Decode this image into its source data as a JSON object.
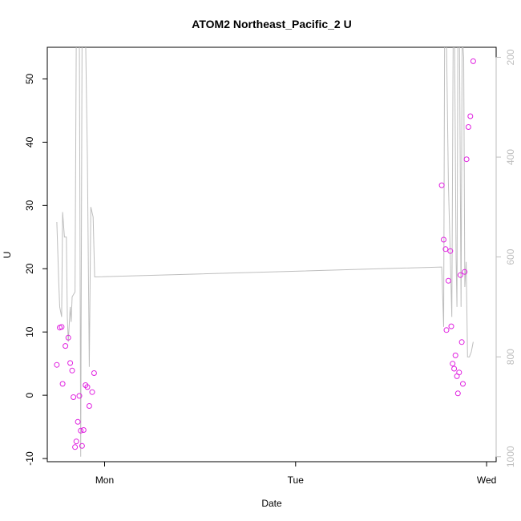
{
  "chart_data": {
    "type": "scatter",
    "title": "ATOM2 Northeast_Pacific_2 U",
    "xlabel": "Date",
    "ylabel": "U",
    "x_tick_labels": [
      "Mon",
      "Tue",
      "Wed"
    ],
    "x_ticks": [
      0,
      1,
      2
    ],
    "xlim": [
      -0.3,
      2.05
    ],
    "ylim": [
      -10.5,
      55
    ],
    "y_ticks": [
      -10,
      0,
      10,
      20,
      30,
      40,
      50
    ],
    "y2_ticks": [
      200,
      400,
      600,
      800,
      1000
    ],
    "y2_lim": [
      1010,
      180
    ],
    "colors": {
      "points": "#e020e0",
      "line": "#bebebe",
      "axis": "#000000",
      "right_axis": "#bebebe"
    },
    "series": [
      {
        "kind": "points",
        "points": [
          [
            -0.25,
            4.8
          ],
          [
            -0.235,
            10.7
          ],
          [
            -0.225,
            10.8
          ],
          [
            -0.22,
            1.8
          ],
          [
            -0.205,
            7.8
          ],
          [
            -0.19,
            9.1
          ],
          [
            -0.18,
            5.1
          ],
          [
            -0.17,
            3.9
          ],
          [
            -0.163,
            -0.3
          ],
          [
            -0.155,
            -8.2
          ],
          [
            -0.148,
            -7.3
          ],
          [
            -0.14,
            -4.2
          ],
          [
            -0.132,
            -0.1
          ],
          [
            -0.125,
            -5.6
          ],
          [
            -0.118,
            -8.0
          ],
          [
            -0.11,
            -5.5
          ],
          [
            -0.1,
            1.6
          ],
          [
            -0.09,
            1.3
          ],
          [
            -0.08,
            -1.7
          ],
          [
            -0.065,
            0.5
          ],
          [
            -0.055,
            3.5
          ],
          [
            1.765,
            33.2
          ],
          [
            1.775,
            24.6
          ],
          [
            1.785,
            23.1
          ],
          [
            1.79,
            10.3
          ],
          [
            1.8,
            18.1
          ],
          [
            1.81,
            22.8
          ],
          [
            1.815,
            10.9
          ],
          [
            1.822,
            5.0
          ],
          [
            1.83,
            4.2
          ],
          [
            1.837,
            6.3
          ],
          [
            1.845,
            3.0
          ],
          [
            1.85,
            0.3
          ],
          [
            1.856,
            3.6
          ],
          [
            1.863,
            19.0
          ],
          [
            1.87,
            8.4
          ],
          [
            1.876,
            1.8
          ],
          [
            1.885,
            19.5
          ],
          [
            1.895,
            37.3
          ],
          [
            1.905,
            42.4
          ],
          [
            1.915,
            44.1
          ],
          [
            1.93,
            52.8
          ]
        ]
      },
      {
        "kind": "line",
        "axis": "right",
        "points": [
          [
            -0.25,
            530
          ],
          [
            -0.245,
            590
          ],
          [
            -0.24,
            650
          ],
          [
            -0.235,
            700
          ],
          [
            -0.225,
            720
          ],
          [
            -0.22,
            510
          ],
          [
            -0.21,
            560
          ],
          [
            -0.2,
            560
          ],
          [
            -0.195,
            720
          ],
          [
            -0.19,
            770
          ],
          [
            -0.18,
            700
          ],
          [
            -0.175,
            730
          ],
          [
            -0.17,
            680
          ],
          [
            -0.155,
            670
          ],
          [
            -0.148,
            150
          ],
          [
            -0.14,
            150
          ],
          [
            -0.132,
            150
          ],
          [
            -0.125,
            1000
          ],
          [
            -0.118,
            150
          ],
          [
            -0.11,
            150
          ],
          [
            -0.1,
            150
          ],
          [
            -0.09,
            400
          ],
          [
            -0.08,
            820
          ],
          [
            -0.072,
            500
          ],
          [
            -0.06,
            520
          ],
          [
            -0.052,
            640
          ],
          [
            1.765,
            620
          ],
          [
            1.775,
            740
          ],
          [
            1.78,
            150
          ],
          [
            1.79,
            160
          ],
          [
            1.8,
            450
          ],
          [
            1.81,
            600
          ],
          [
            1.818,
            720
          ],
          [
            1.825,
            150
          ],
          [
            1.832,
            150
          ],
          [
            1.84,
            600
          ],
          [
            1.845,
            700
          ],
          [
            1.85,
            150
          ],
          [
            1.858,
            150
          ],
          [
            1.866,
            700
          ],
          [
            1.872,
            150
          ],
          [
            1.88,
            200
          ],
          [
            1.886,
            660
          ],
          [
            1.893,
            610
          ],
          [
            1.9,
            800
          ],
          [
            1.91,
            800
          ],
          [
            1.92,
            790
          ],
          [
            1.93,
            770
          ]
        ]
      }
    ]
  }
}
